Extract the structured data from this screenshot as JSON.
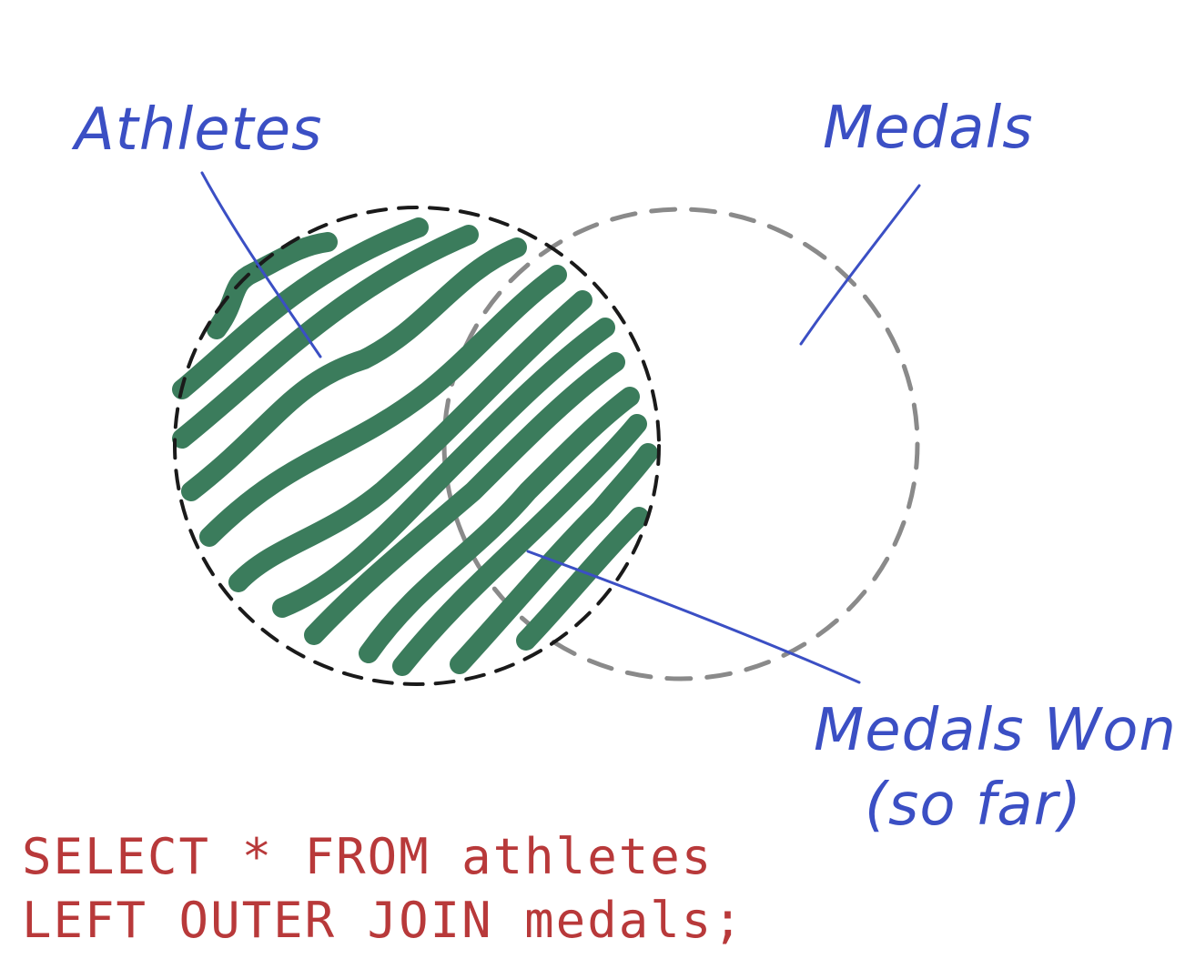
{
  "diagram": {
    "labels": {
      "athletes": "Athletes",
      "medals": "Medals",
      "medals_won_line1": "Medals Won",
      "medals_won_line2": "(so far)"
    },
    "sql": {
      "line1": "SELECT * FROM athletes",
      "line2": "LEFT OUTER JOIN medals;"
    },
    "colors": {
      "label": "#3b4fc4",
      "sql": "#b8393a",
      "fill": "#3b7c5c",
      "left_outline": "#1a1a1a",
      "right_outline": "#8a8a8a"
    }
  }
}
